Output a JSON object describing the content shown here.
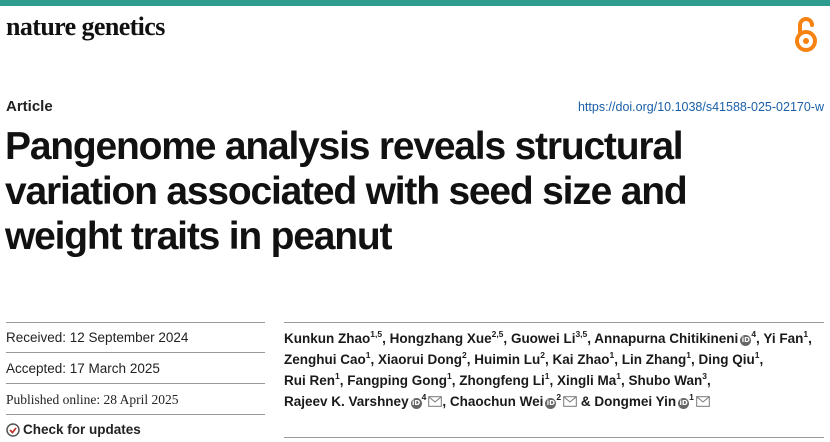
{
  "journal": "nature genetics",
  "article_type": "Article",
  "doi": "https://doi.org/10.1038/s41588-025-02170-w",
  "title_lines": [
    "Pangenome analysis reveals structural",
    "variation associated with seed size and",
    "weight traits in peanut"
  ],
  "dates": {
    "received": "Received: 12 September 2024",
    "accepted": "Accepted: 17 March 2025",
    "published": "Published online: 28 April 2025"
  },
  "check_updates": "Check for updates",
  "authors": [
    {
      "name": "Kunkun Zhao",
      "sup": "1,5",
      "orcid": false,
      "mail": false,
      "sep": ", "
    },
    {
      "name": "Hongzhang Xue",
      "sup": "2,5",
      "orcid": false,
      "mail": false,
      "sep": ", "
    },
    {
      "name": "Guowei Li",
      "sup": "3,5",
      "orcid": false,
      "mail": false,
      "sep": ", "
    },
    {
      "name": "Annapurna Chitikineni",
      "sup": "4",
      "orcid": true,
      "mail": false,
      "sep": ", "
    },
    {
      "name": "Yi Fan",
      "sup": "1",
      "orcid": false,
      "mail": false,
      "sep": ", "
    },
    {
      "name": "Zenghui Cao",
      "sup": "1",
      "orcid": false,
      "mail": false,
      "sep": ", "
    },
    {
      "name": "Xiaorui Dong",
      "sup": "2",
      "orcid": false,
      "mail": false,
      "sep": ", "
    },
    {
      "name": "Huimin Lu",
      "sup": "2",
      "orcid": false,
      "mail": false,
      "sep": ", "
    },
    {
      "name": "Kai Zhao",
      "sup": "1",
      "orcid": false,
      "mail": false,
      "sep": ", "
    },
    {
      "name": "Lin Zhang",
      "sup": "1",
      "orcid": false,
      "mail": false,
      "sep": ", "
    },
    {
      "name": "Ding Qiu",
      "sup": "1",
      "orcid": false,
      "mail": false,
      "sep": ", "
    },
    {
      "name": "Rui Ren",
      "sup": "1",
      "orcid": false,
      "mail": false,
      "sep": ", "
    },
    {
      "name": "Fangping Gong",
      "sup": "1",
      "orcid": false,
      "mail": false,
      "sep": ", "
    },
    {
      "name": "Zhongfeng Li",
      "sup": "1",
      "orcid": false,
      "mail": false,
      "sep": ", "
    },
    {
      "name": "Xingli Ma",
      "sup": "1",
      "orcid": false,
      "mail": false,
      "sep": ", "
    },
    {
      "name": "Shubo Wan",
      "sup": "3",
      "orcid": false,
      "mail": false,
      "sep": ", "
    },
    {
      "name": "Rajeev K. Varshney",
      "sup": "4",
      "orcid": true,
      "mail": true,
      "sep": ", "
    },
    {
      "name": "Chaochun Wei",
      "sup": "2",
      "orcid": true,
      "mail": true,
      "sep": " & "
    },
    {
      "name": "Dongmei Yin",
      "sup": "1",
      "orcid": true,
      "mail": true,
      "sep": ""
    }
  ],
  "colors": {
    "accent_bar": "#2e9b8f",
    "oa_icon": "#f68212",
    "doi_link": "#1a5fa8"
  }
}
